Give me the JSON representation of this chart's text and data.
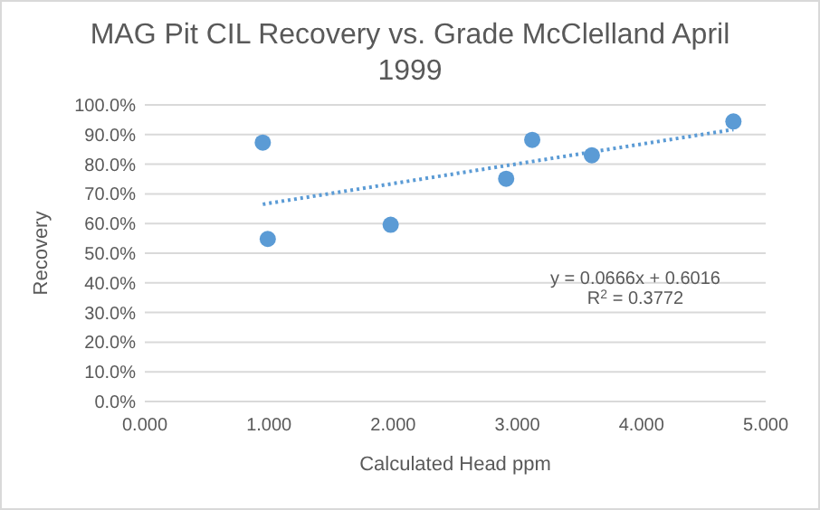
{
  "chart_data": {
    "type": "scatter",
    "title": "MAG Pit CIL Recovery vs. Grade McClelland April 1999",
    "xlabel": "Calculated Head ppm",
    "ylabel": "Recovery",
    "series": [
      {
        "color": "#5b9bd5",
        "x": [
          0.95,
          0.99,
          1.98,
          2.91,
          3.12,
          3.6,
          4.74
        ],
        "values": [
          0.873,
          0.548,
          0.596,
          0.751,
          0.882,
          0.83,
          0.944
        ],
        "marker": "circle"
      },
      {
        "type": "line",
        "color": "#5b9bd5",
        "x": [
          0.95,
          4.74
        ],
        "values": [
          0.665,
          0.917
        ],
        "line_style": "dotted"
      }
    ],
    "xlim": [
      0,
      5
    ],
    "xticks": [
      {
        "value": 0,
        "label": "0.000"
      },
      {
        "value": 1,
        "label": "1.000"
      },
      {
        "value": 2,
        "label": "2.000"
      },
      {
        "value": 3,
        "label": "3.000"
      },
      {
        "value": 4,
        "label": "4.000"
      },
      {
        "value": 5,
        "label": "5.000"
      }
    ],
    "ylim": [
      0,
      1
    ],
    "yticks": [
      {
        "value": 0,
        "label": "0.0%"
      },
      {
        "value": 0.1,
        "label": "10.0%"
      },
      {
        "value": 0.2,
        "label": "20.0%"
      },
      {
        "value": 0.3,
        "label": "30.0%"
      },
      {
        "value": 0.4,
        "label": "40.0%"
      },
      {
        "value": 0.5,
        "label": "50.0%"
      },
      {
        "value": 0.6,
        "label": "60.0%"
      },
      {
        "value": 0.7,
        "label": "70.0%"
      },
      {
        "value": 0.8,
        "label": "80.0%"
      },
      {
        "value": 0.9,
        "label": "90.0%"
      },
      {
        "value": 1,
        "label": "100.0%"
      }
    ],
    "grid": "y",
    "annotations": [
      "y = 0.0666x + 0.6016",
      "R$^{2}$ = 0.3772"
    ]
  }
}
